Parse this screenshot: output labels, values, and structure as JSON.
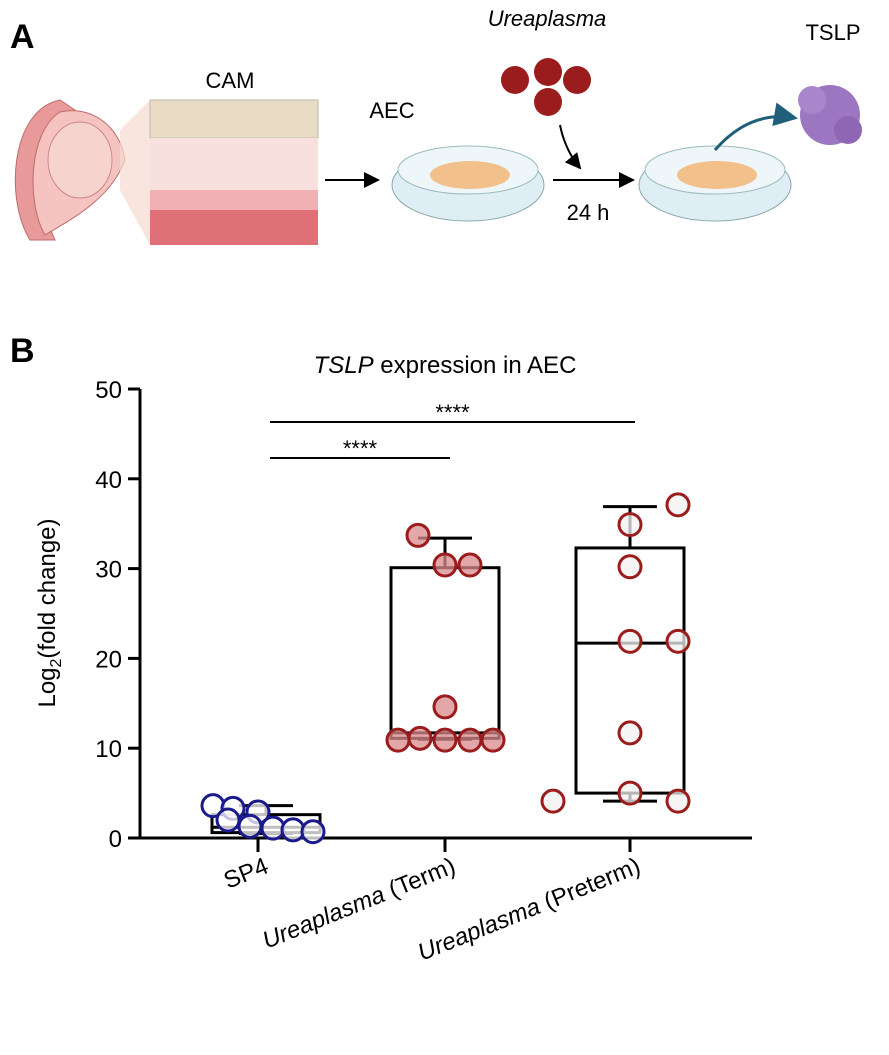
{
  "panel_a": {
    "label": "A",
    "tissue": "CAM",
    "cells": "AEC",
    "bacteria": "Ureaplasma",
    "time": "24 h",
    "product": "TSLP"
  },
  "panel_b": {
    "label": "B"
  },
  "chart_data": {
    "type": "box",
    "title": "TSLP expression in AEC",
    "y_label": "Log2(fold change)",
    "categories": [
      "SP4",
      "Ureaplasma (Term)",
      "Ureaplasma (Preterm)"
    ],
    "edge_colors": [
      "#1a1a8c",
      "#9b1c1c",
      "#9b1c1c"
    ],
    "fill_colors": [
      "#ffffff",
      "#d9898c",
      "#f2f2f2"
    ],
    "boxes": [
      {
        "min": 0.5,
        "q1": 0.6,
        "median": 1.2,
        "q3": 2.6,
        "max": 3.6
      },
      {
        "min": 11.0,
        "q1": 11.1,
        "median": 11.7,
        "q3": 30.1,
        "max": 33.4
      },
      {
        "min": 4.1,
        "q1": 5.0,
        "median": 21.7,
        "q3": 32.3,
        "max": 36.9
      }
    ],
    "points": [
      [
        3.6,
        3.3,
        2.9,
        2.0,
        1.3,
        1.1,
        0.9,
        0.7
      ],
      [
        33.7,
        30.4,
        30.4,
        14.6,
        10.9,
        11.1,
        10.9,
        10.9,
        10.9
      ],
      [
        34.9,
        37.1,
        30.2,
        21.9,
        21.9,
        11.7,
        4.1,
        5.0,
        4.1
      ]
    ],
    "ylim": [
      0,
      50
    ],
    "yticks": [
      0,
      10,
      20,
      30,
      40,
      50
    ],
    "annotations": [
      {
        "label": "****",
        "from": 0,
        "to": 1
      },
      {
        "label": "****",
        "from": 0,
        "to": 2
      }
    ]
  }
}
